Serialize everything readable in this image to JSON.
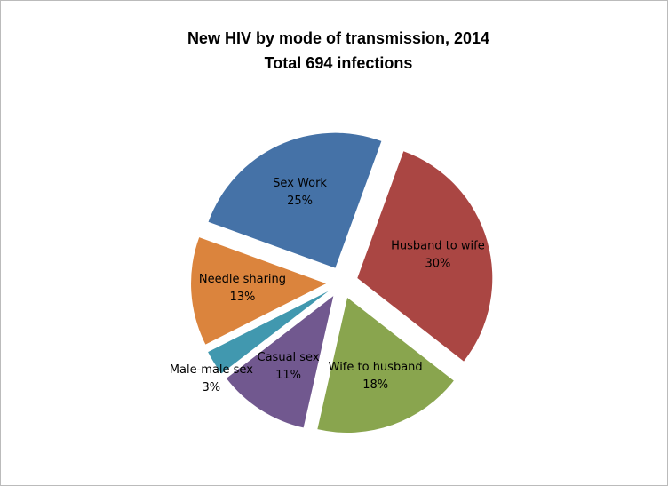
{
  "chart_data": {
    "type": "pie",
    "title": "New HIV by mode of transmission, 2014",
    "subtitle": "Total 694 infections",
    "categories": [
      "Husband to wife",
      "Wife to husband",
      "Casual sex",
      "Male-male sex",
      "Needle  sharing",
      "Sex Work"
    ],
    "values": [
      30,
      18,
      11,
      3,
      13,
      25
    ],
    "value_labels": [
      "30%",
      "18%",
      "11%",
      "3%",
      "13%",
      "25%"
    ],
    "colors": [
      "#AA4643",
      "#89A54E",
      "#71588F",
      "#4198AF",
      "#DB843D",
      "#4572A7"
    ]
  }
}
